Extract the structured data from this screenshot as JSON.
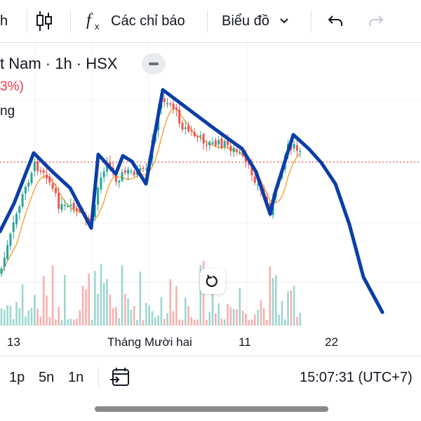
{
  "toolbar": {
    "partial_left": "h",
    "indicators_label": "Các chỉ báo",
    "chart_type_label": "Biểu đồ"
  },
  "legend": {
    "title": "t Nam · 1h · HSX",
    "change_pct": "3%)",
    "ma_label": "ng"
  },
  "x_axis": {
    "labels": [
      "13",
      "Tháng Mười hai",
      "11",
      "22"
    ]
  },
  "bottom": {
    "intervals": [
      "1p",
      "5n",
      "1n"
    ],
    "time": "15:07:31 (UTC+7)"
  },
  "colors": {
    "up": "#26a69a",
    "down": "#ef5350",
    "ma": "#f2a93b",
    "drawing": "#0b3ea8",
    "price_line": "#ef5350"
  },
  "icons": [
    "candlestick-icon",
    "fx-icon",
    "chevron-down-icon",
    "undo-icon",
    "redo-icon",
    "collapse-icon",
    "reset-icon",
    "goto-date-icon"
  ]
}
